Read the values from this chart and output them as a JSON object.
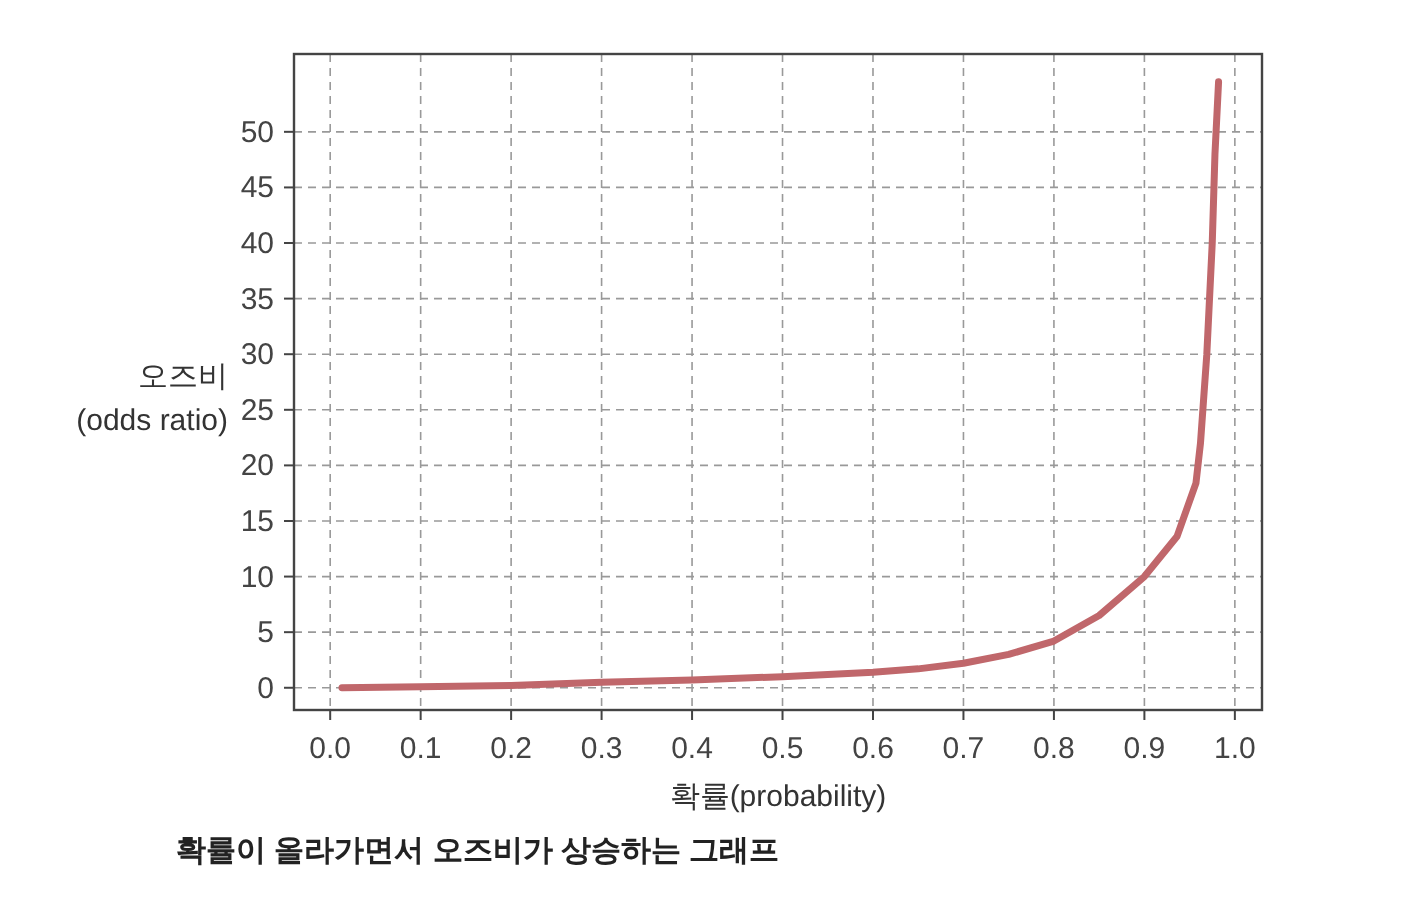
{
  "chart_data": {
    "type": "line",
    "xlabel": "확률(probability)",
    "ylabel": "오즈비\n(odds ratio)",
    "annotations": [
      "확률이 올라가면서 오즈비가 상승하는 그래프"
    ],
    "x": [
      0.013,
      0.1,
      0.2,
      0.3,
      0.4,
      0.5,
      0.6,
      0.65,
      0.7,
      0.75,
      0.8,
      0.85,
      0.9,
      0.936,
      0.957,
      0.962,
      0.969,
      0.975,
      0.978,
      0.982
    ],
    "series": [
      {
        "color": "#c0676b",
        "values": [
          0,
          0.1,
          0.2,
          0.5,
          0.7,
          1,
          1.4,
          1.7,
          2.2,
          3,
          4.2,
          6.5,
          10,
          13.6,
          18.4,
          22,
          30,
          40,
          48,
          54.5
        ]
      }
    ],
    "xlim": [
      -0.04,
      1.03
    ],
    "ylim": [
      -2,
      57
    ],
    "xticks": [
      {
        "value": 0,
        "label": "0.0"
      },
      0.1,
      0.2,
      0.3,
      0.4,
      0.5,
      0.6,
      0.7,
      0.8,
      0.9,
      {
        "value": 1,
        "label": "1.0"
      }
    ],
    "yticks": [
      0,
      5,
      10,
      15,
      20,
      25,
      30,
      35,
      40,
      45,
      50
    ],
    "grid": true,
    "marker": "none",
    "line_style": "solid"
  }
}
